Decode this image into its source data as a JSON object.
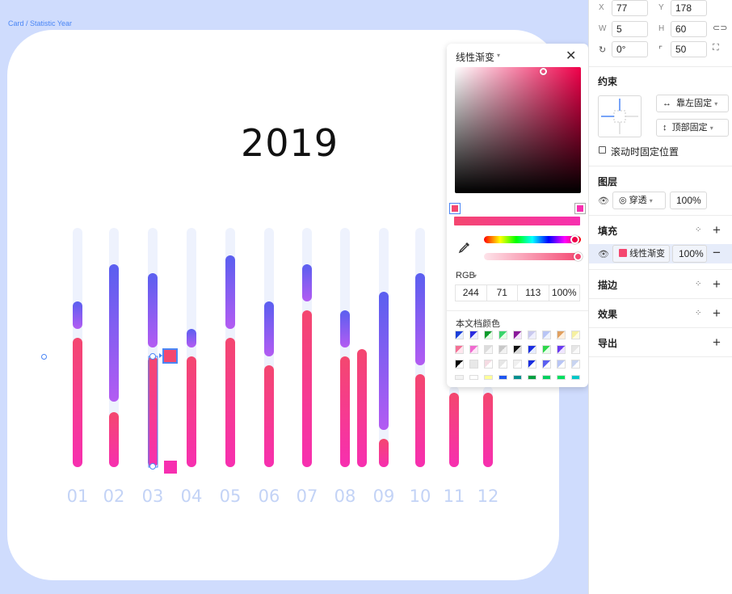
{
  "canvas": {
    "frame_label": "Card / Statistic Year",
    "year": "2019",
    "months": [
      "01",
      "02",
      "03",
      "04",
      "05",
      "06",
      "07",
      "08",
      "09",
      "10",
      "11",
      "12"
    ]
  },
  "chart_data": {
    "type": "bar",
    "categories": [
      "01",
      "02",
      "03",
      "04",
      "05",
      "06",
      "07",
      "08",
      "09",
      "10",
      "11",
      "12"
    ],
    "colors": {
      "track": "#eef2fd",
      "blue_top": "#5a5ff0",
      "blue_bottom": "#b35cf2",
      "pink_top": "#f4476f",
      "pink_bottom": "#f72fb0"
    }
  },
  "picker": {
    "title": "线性渐变",
    "mode": "RGB",
    "r": "244",
    "g": "71",
    "b": "113",
    "a": "100%",
    "swatch_title": "本文档颜色",
    "stop_left_color": "#f4476f",
    "stop_right_color": "#f72fb0"
  },
  "inspector": {
    "x_label": "X",
    "x": "77",
    "y_label": "Y",
    "y": "178",
    "w_label": "W",
    "w": "5",
    "h_label": "H",
    "h": "60",
    "rotation": "0°",
    "radius": "50",
    "constraints_title": "约束",
    "horizontal_constraint": "靠左固定",
    "vertical_constraint": "顶部固定",
    "fix_on_scroll": "滚动时固定位置",
    "layer_title": "图层",
    "blend_mode": "穿透",
    "layer_opacity": "100%",
    "fill_title": "填充",
    "fill_type": "线性渐变",
    "fill_opacity": "100%",
    "stroke_title": "描边",
    "effects_title": "效果",
    "export_title": "导出"
  }
}
